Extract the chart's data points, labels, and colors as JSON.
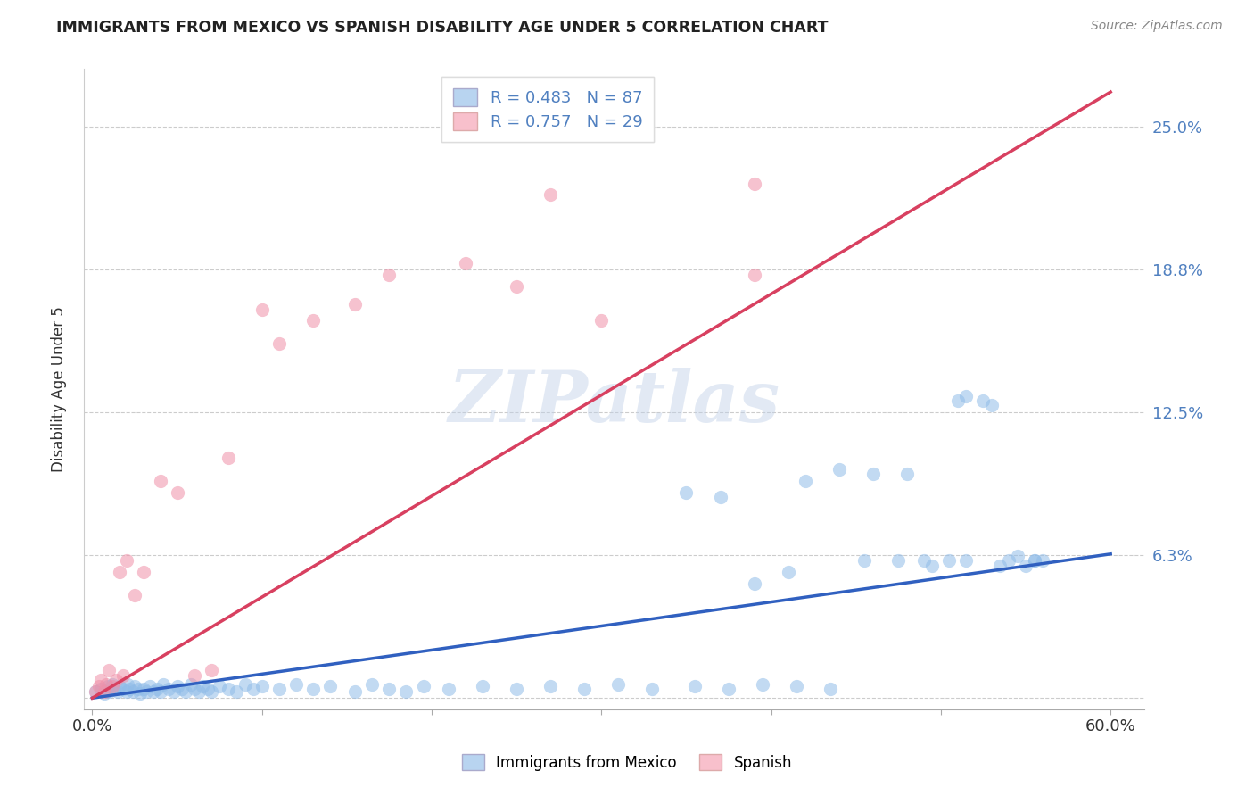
{
  "title": "IMMIGRANTS FROM MEXICO VS SPANISH DISABILITY AGE UNDER 5 CORRELATION CHART",
  "source": "Source: ZipAtlas.com",
  "ylabel": "Disability Age Under 5",
  "xlim": [
    -0.005,
    0.62
  ],
  "ylim": [
    -0.005,
    0.275
  ],
  "ytick_vals": [
    0.0,
    0.0625,
    0.125,
    0.1875,
    0.25
  ],
  "ytick_labels": [
    "",
    "6.3%",
    "12.5%",
    "18.8%",
    "25.0%"
  ],
  "xtick_vals": [
    0.0,
    0.1,
    0.2,
    0.3,
    0.4,
    0.5,
    0.6
  ],
  "xtick_labels": [
    "0.0%",
    "",
    "",
    "",
    "",
    "",
    "60.0%"
  ],
  "blue_color": "#90bce8",
  "pink_color": "#f090a8",
  "blue_line_color": "#3060c0",
  "pink_line_color": "#d84060",
  "watermark": "ZIPatlas",
  "blue_trend": [
    0.0,
    0.0,
    0.6,
    0.063
  ],
  "pink_trend": [
    0.0,
    0.0,
    0.6,
    0.265
  ],
  "blue_x": [
    0.002,
    0.005,
    0.007,
    0.009,
    0.01,
    0.012,
    0.013,
    0.015,
    0.016,
    0.018,
    0.02,
    0.021,
    0.022,
    0.024,
    0.025,
    0.027,
    0.028,
    0.03,
    0.032,
    0.034,
    0.036,
    0.038,
    0.04,
    0.042,
    0.045,
    0.048,
    0.05,
    0.053,
    0.055,
    0.058,
    0.06,
    0.063,
    0.065,
    0.068,
    0.07,
    0.075,
    0.08,
    0.085,
    0.09,
    0.095,
    0.1,
    0.11,
    0.12,
    0.13,
    0.14,
    0.155,
    0.165,
    0.175,
    0.185,
    0.195,
    0.21,
    0.23,
    0.25,
    0.27,
    0.29,
    0.31,
    0.33,
    0.355,
    0.375,
    0.395,
    0.415,
    0.435,
    0.455,
    0.475,
    0.495,
    0.515,
    0.535,
    0.555,
    0.35,
    0.37,
    0.39,
    0.41,
    0.42,
    0.44,
    0.46,
    0.48,
    0.49,
    0.505,
    0.51,
    0.515,
    0.525,
    0.53,
    0.54,
    0.545,
    0.55,
    0.555,
    0.56
  ],
  "blue_y": [
    0.003,
    0.004,
    0.002,
    0.005,
    0.003,
    0.006,
    0.004,
    0.003,
    0.005,
    0.004,
    0.003,
    0.006,
    0.004,
    0.003,
    0.005,
    0.004,
    0.002,
    0.004,
    0.003,
    0.005,
    0.003,
    0.004,
    0.003,
    0.006,
    0.004,
    0.003,
    0.005,
    0.004,
    0.003,
    0.006,
    0.004,
    0.003,
    0.005,
    0.004,
    0.003,
    0.005,
    0.004,
    0.003,
    0.006,
    0.004,
    0.005,
    0.004,
    0.006,
    0.004,
    0.005,
    0.003,
    0.006,
    0.004,
    0.003,
    0.005,
    0.004,
    0.005,
    0.004,
    0.005,
    0.004,
    0.006,
    0.004,
    0.005,
    0.004,
    0.006,
    0.005,
    0.004,
    0.06,
    0.06,
    0.058,
    0.06,
    0.058,
    0.06,
    0.09,
    0.088,
    0.05,
    0.055,
    0.095,
    0.1,
    0.098,
    0.098,
    0.06,
    0.06,
    0.13,
    0.132,
    0.13,
    0.128,
    0.06,
    0.062,
    0.058,
    0.06,
    0.06
  ],
  "pink_x": [
    0.002,
    0.004,
    0.005,
    0.007,
    0.008,
    0.01,
    0.012,
    0.014,
    0.016,
    0.018,
    0.02,
    0.025,
    0.03,
    0.04,
    0.05,
    0.06,
    0.07,
    0.08,
    0.1,
    0.11,
    0.13,
    0.155,
    0.175,
    0.22,
    0.25,
    0.27,
    0.3,
    0.39,
    0.39
  ],
  "pink_y": [
    0.003,
    0.005,
    0.008,
    0.003,
    0.006,
    0.012,
    0.005,
    0.008,
    0.055,
    0.01,
    0.06,
    0.045,
    0.055,
    0.095,
    0.09,
    0.01,
    0.012,
    0.105,
    0.17,
    0.155,
    0.165,
    0.172,
    0.185,
    0.19,
    0.18,
    0.22,
    0.165,
    0.185,
    0.225
  ]
}
